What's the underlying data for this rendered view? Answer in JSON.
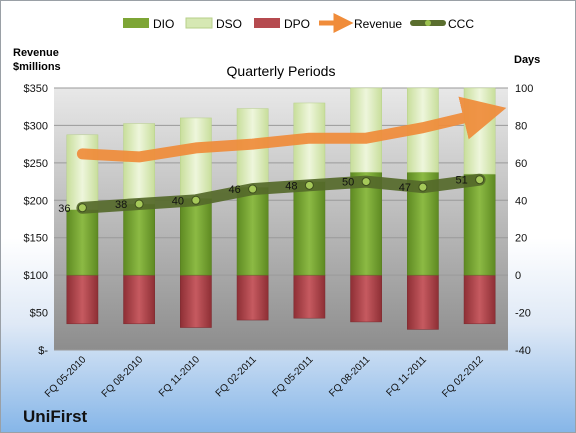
{
  "company": "UniFirst",
  "chart_data": {
    "type": "bar",
    "title": "Quarterly Periods",
    "left_axis_label_line1": "Revenue",
    "left_axis_label_line2": "$millions",
    "right_axis_label": "Days",
    "categories": [
      "FQ 05-2010",
      "FQ 08-2010",
      "FQ 11-2010",
      "FQ 02-2011",
      "FQ 05-2011",
      "FQ 08-2011",
      "FQ 11-2011",
      "FQ 02-2012"
    ],
    "y_left": {
      "min": 0,
      "max": 350,
      "step": 50,
      "ticks": [
        "$-",
        "$50",
        "$100",
        "$150",
        "$200",
        "$250",
        "$300",
        "$350"
      ]
    },
    "y_right": {
      "min": -40,
      "max": 100,
      "step": 20,
      "ticks": [
        "-40",
        "-20",
        "0",
        "20",
        "40",
        "60",
        "80",
        "100"
      ]
    },
    "legend": [
      "DIO",
      "DSO",
      "DPO",
      "Revenue",
      "CCC"
    ],
    "legend_position": "top",
    "series": [
      {
        "name": "DIO",
        "axis": "right",
        "values": [
          35,
          38,
          41,
          47,
          50,
          55,
          55,
          54
        ],
        "color": "#7da535"
      },
      {
        "name": "DSO",
        "axis": "right",
        "values": [
          40,
          43,
          43,
          42,
          42,
          45,
          45,
          46
        ],
        "color": "#d6e8b3"
      },
      {
        "name": "DPO",
        "axis": "right",
        "values": [
          -26,
          -26,
          -28,
          -24,
          -23,
          -25,
          -29,
          -26
        ],
        "color": "#b54a4f"
      },
      {
        "name": "Revenue",
        "axis": "left",
        "values": [
          262,
          258,
          270,
          275,
          283,
          283,
          297,
          315
        ],
        "color": "#f08c3a"
      },
      {
        "name": "CCC",
        "axis": "right",
        "values": [
          36,
          38,
          40,
          46,
          48,
          50,
          47,
          51
        ],
        "data_labels": [
          "36",
          "38",
          "40",
          "46",
          "48",
          "50",
          "47",
          "51"
        ],
        "color": "#5a6e2e"
      }
    ],
    "grid": true
  }
}
